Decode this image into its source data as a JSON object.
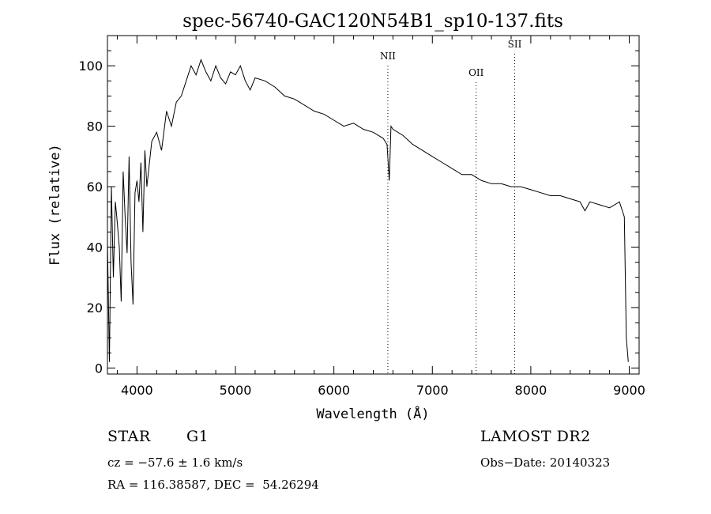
{
  "chart_data": {
    "type": "line",
    "title": "spec-56740-GAC120N54B1_sp10-137.fits",
    "xlabel": "Wavelength (Å)",
    "ylabel": "Flux (relative)",
    "xlim": [
      3700,
      9100
    ],
    "ylim": [
      -2,
      110
    ],
    "x_ticks": [
      4000,
      5000,
      6000,
      7000,
      8000,
      9000
    ],
    "y_ticks": [
      0,
      20,
      40,
      60,
      80,
      100
    ],
    "grid": false,
    "line_color": "#000000",
    "series": [
      {
        "x": [
          3700,
          3720,
          3740,
          3760,
          3780,
          3800,
          3820,
          3840,
          3860,
          3880,
          3900,
          3920,
          3940,
          3960,
          3980,
          4000,
          4020,
          4040,
          4060,
          4080,
          4100,
          4150,
          4200,
          4250,
          4300,
          4350,
          4400,
          4450,
          4500,
          4550,
          4600,
          4650,
          4700,
          4750,
          4800,
          4850,
          4900,
          4950,
          5000,
          5050,
          5100,
          5150,
          5200,
          5300,
          5400,
          5500,
          5600,
          5700,
          5800,
          5900,
          6000,
          6100,
          6200,
          6300,
          6400,
          6500,
          6540,
          6563,
          6580,
          6600,
          6700,
          6800,
          6900,
          7000,
          7100,
          7200,
          7300,
          7400,
          7500,
          7600,
          7700,
          7800,
          7900,
          8000,
          8100,
          8200,
          8300,
          8400,
          8500,
          8550,
          8600,
          8700,
          8800,
          8900,
          8950,
          8970,
          8990
        ],
        "y": [
          42,
          2,
          60,
          30,
          55,
          48,
          40,
          22,
          65,
          50,
          38,
          70,
          35,
          21,
          58,
          62,
          55,
          68,
          45,
          72,
          60,
          75,
          78,
          72,
          85,
          80,
          88,
          90,
          95,
          100,
          97,
          102,
          98,
          95,
          100,
          96,
          94,
          98,
          97,
          100,
          95,
          92,
          96,
          95,
          93,
          90,
          89,
          87,
          85,
          84,
          82,
          80,
          81,
          79,
          78,
          76,
          74,
          62,
          80,
          79,
          77,
          74,
          72,
          70,
          68,
          66,
          64,
          64,
          62,
          61,
          61,
          60,
          60,
          59,
          58,
          57,
          57,
          56,
          55,
          52,
          55,
          54,
          53,
          55,
          50,
          10,
          2
        ]
      }
    ],
    "annotations": [
      {
        "label": "NII",
        "x": 6548
      },
      {
        "label": "OII",
        "x": 7445
      },
      {
        "label": "SII",
        "x": 7836
      }
    ]
  },
  "info": {
    "class": "STAR",
    "subclass": "G1",
    "survey": "LAMOST DR2",
    "cz": "cz = −57.6 ± 1.6 km/s",
    "obs_date": "Obs−Date: 20140323",
    "radec": "RA = 116.38587, DEC =  54.26294"
  }
}
